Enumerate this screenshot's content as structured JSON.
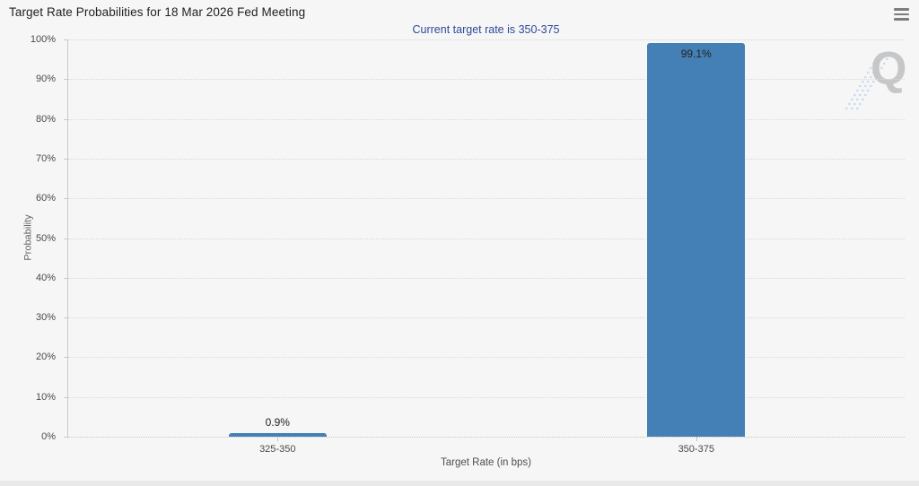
{
  "header": {
    "title": "Target Rate Probabilities for 18 Mar 2026 Fed Meeting",
    "menu_icon": "hamburger-icon"
  },
  "watermark": {
    "letter": "Q"
  },
  "colors": {
    "bar": "#4480b5",
    "subtitle_text": "#2c4a99",
    "background": "#f6f6f6",
    "gridline": "#d9d9d9"
  },
  "chart_data": {
    "type": "bar",
    "title": "Target Rate Probabilities for 18 Mar 2026 Fed Meeting",
    "subtitle": "Current target rate is 350-375",
    "categories": [
      "325-350",
      "350-375"
    ],
    "values": [
      0.9,
      99.1
    ],
    "value_labels": [
      "0.9%",
      "99.1%"
    ],
    "xlabel": "Target Rate (in bps)",
    "ylabel": "Probability",
    "ylim": [
      0,
      100
    ],
    "ytick_labels": [
      "0%",
      "10%",
      "20%",
      "30%",
      "40%",
      "50%",
      "60%",
      "70%",
      "80%",
      "90%",
      "100%"
    ],
    "grid": "dotted-horizontal",
    "legend": "none",
    "bar_color": "#4480b5"
  }
}
